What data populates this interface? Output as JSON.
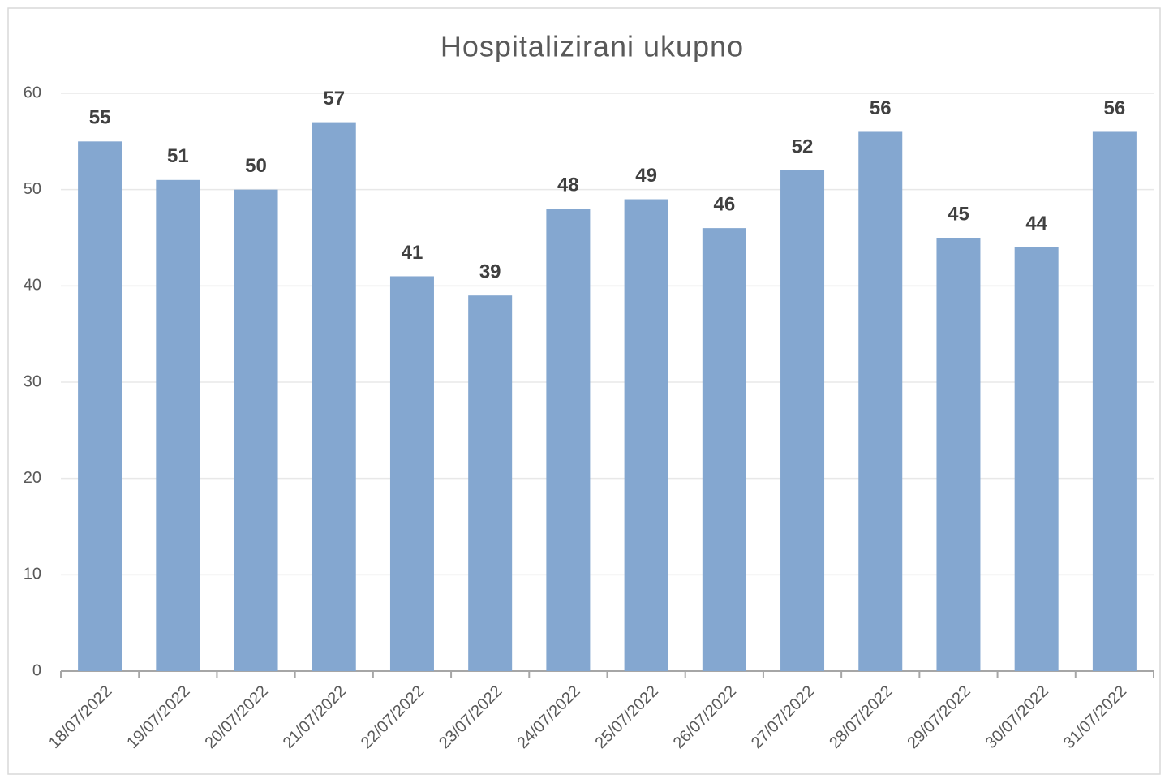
{
  "chart_data": {
    "type": "bar",
    "title": "Hospitalizirani ukupno",
    "categories": [
      "18/07/2022",
      "19/07/2022",
      "20/07/2022",
      "21/07/2022",
      "22/07/2022",
      "23/07/2022",
      "24/07/2022",
      "25/07/2022",
      "26/07/2022",
      "27/07/2022",
      "28/07/2022",
      "29/07/2022",
      "30/07/2022",
      "31/07/2022"
    ],
    "values": [
      55,
      51,
      50,
      57,
      41,
      39,
      48,
      49,
      46,
      52,
      56,
      45,
      44,
      56
    ],
    "color": "#84a7d0",
    "ylim": [
      0,
      60
    ],
    "yticks": [
      0,
      10,
      20,
      30,
      40,
      50,
      60
    ],
    "grid": true
  }
}
